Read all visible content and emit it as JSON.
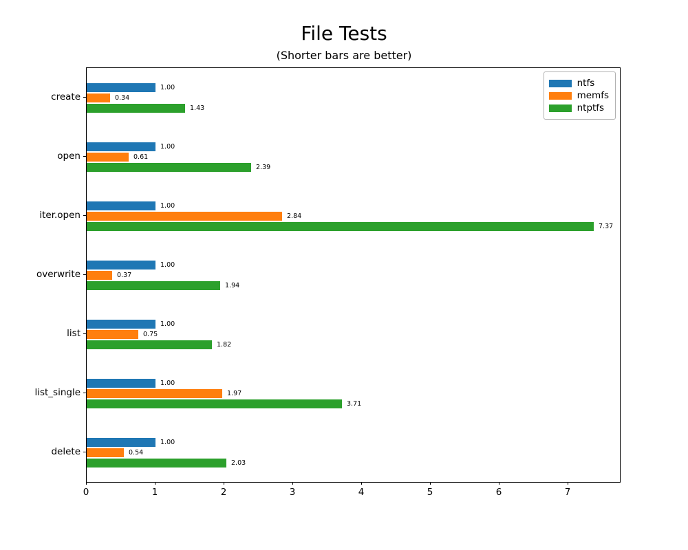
{
  "chart_data": {
    "type": "bar",
    "orientation": "horizontal",
    "title": "File Tests",
    "subtitle": "(Shorter bars are better)",
    "categories": [
      "create",
      "open",
      "iter.open",
      "overwrite",
      "list",
      "list_single",
      "delete"
    ],
    "series": [
      {
        "name": "ntfs",
        "color": "#1f77b4",
        "values": [
          1.0,
          1.0,
          1.0,
          1.0,
          1.0,
          1.0,
          1.0
        ]
      },
      {
        "name": "memfs",
        "color": "#ff7f0e",
        "values": [
          0.34,
          0.61,
          2.84,
          0.37,
          0.75,
          1.97,
          0.54
        ]
      },
      {
        "name": "ntptfs",
        "color": "#2ca02c",
        "values": [
          1.43,
          2.39,
          7.37,
          1.94,
          1.82,
          3.71,
          2.03
        ]
      }
    ],
    "x_ticks": [
      "0",
      "1",
      "2",
      "3",
      "4",
      "5",
      "6",
      "7"
    ],
    "xlim": [
      0,
      7.75
    ],
    "grid": false,
    "legend_position": "upper right",
    "value_labels_decimals": 2
  }
}
